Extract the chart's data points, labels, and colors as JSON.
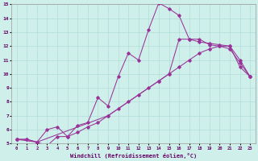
{
  "bg_color": "#cff0ea",
  "grid_color": "#b0ddd8",
  "line_color": "#993399",
  "xlim": [
    -0.5,
    23.5
  ],
  "ylim": [
    5,
    15
  ],
  "xticks": [
    0,
    1,
    2,
    3,
    4,
    5,
    6,
    7,
    8,
    9,
    10,
    11,
    12,
    13,
    14,
    15,
    16,
    17,
    18,
    19,
    20,
    21,
    22,
    23
  ],
  "yticks": [
    5,
    6,
    7,
    8,
    9,
    10,
    11,
    12,
    13,
    14,
    15
  ],
  "xlabel": "Windchill (Refroidissement éolien,°C)",
  "line1_x": [
    0,
    1,
    2,
    3,
    4,
    5,
    6,
    7,
    8,
    9,
    10,
    11,
    12,
    13,
    14,
    15,
    16,
    17,
    18,
    19,
    20,
    21,
    22,
    23
  ],
  "line1_y": [
    5.3,
    5.3,
    5.1,
    4.85,
    5.5,
    5.5,
    5.8,
    6.2,
    6.5,
    7.0,
    7.5,
    8.0,
    8.5,
    9.0,
    9.5,
    10.0,
    10.5,
    11.0,
    11.5,
    11.8,
    12.0,
    12.0,
    11.0,
    9.8
  ],
  "line2_x": [
    0,
    1,
    2,
    3,
    4,
    5,
    6,
    7,
    8,
    9,
    10,
    11,
    12,
    13,
    14,
    15,
    16,
    17,
    18,
    19,
    20,
    21,
    22,
    23
  ],
  "line2_y": [
    5.3,
    5.3,
    5.1,
    6.0,
    6.2,
    5.5,
    6.3,
    6.5,
    8.3,
    7.7,
    9.8,
    11.5,
    11.0,
    13.2,
    15.1,
    14.7,
    14.2,
    12.5,
    12.5,
    12.1,
    12.0,
    11.8,
    10.8,
    9.8
  ],
  "line3_x": [
    0,
    2,
    9,
    14,
    15,
    16,
    17,
    18,
    19,
    20,
    21,
    22,
    23
  ],
  "line3_y": [
    5.3,
    5.1,
    7.0,
    9.5,
    10.0,
    12.5,
    12.5,
    12.3,
    12.2,
    12.1,
    12.0,
    10.5,
    9.8
  ]
}
